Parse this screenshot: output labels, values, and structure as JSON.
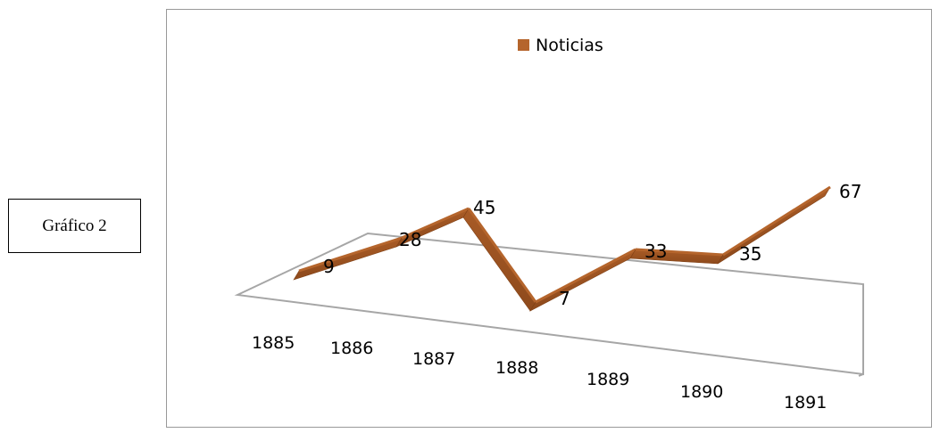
{
  "caption": {
    "text": "Gráfico 2"
  },
  "chart_data": {
    "type": "line",
    "style": "3d-ribbon",
    "categories": [
      "1885",
      "1886",
      "1887",
      "1888",
      "1889",
      "1890",
      "1891"
    ],
    "series": [
      {
        "name": "Noticias",
        "values": [
          9,
          28,
          45,
          7,
          33,
          35,
          67
        ],
        "color": "#B5652C"
      }
    ],
    "data_labels": [
      "9",
      "28",
      "45",
      "7",
      "33",
      "35",
      "67"
    ],
    "legend": {
      "position": "top",
      "entries": [
        "Noticias"
      ]
    },
    "grid": false
  }
}
